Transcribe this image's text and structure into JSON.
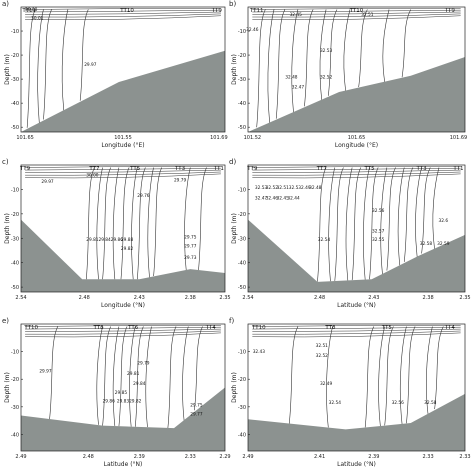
{
  "figure": {
    "caption": ""
  },
  "chart_data": [
    {
      "panel_label": "a)",
      "type": "contour",
      "xlabel": "Longitude (°E)",
      "ylabel": "Depth (m)",
      "xtick_labels": [
        "101.65",
        "101.55",
        "101.69"
      ],
      "yticks": [
        -10,
        -20,
        -30,
        -40,
        -50
      ],
      "ylim": [
        -52,
        0
      ],
      "stations": [
        "TT11",
        "TT10",
        "TT9"
      ],
      "contour_labels": [
        "30.00",
        "30.01",
        "29.97"
      ],
      "seabed": "sloping"
    },
    {
      "panel_label": "b)",
      "type": "contour",
      "xlabel": "Longitude (°E)",
      "ylabel": "Depth (m)",
      "xtick_labels": [
        "101.52",
        "101.65",
        "101.69"
      ],
      "yticks": [
        -10,
        -20,
        -30,
        -40,
        -50
      ],
      "ylim": [
        -52,
        0
      ],
      "stations": [
        "TT11",
        "TT10",
        "TT9"
      ],
      "contour_labels": [
        "32.45",
        "32.51",
        "32.46",
        "32.53",
        "32.48",
        "32.52",
        "32.47"
      ],
      "seabed": "sloping"
    },
    {
      "panel_label": "c)",
      "type": "contour",
      "xlabel": "Longitude (°N)",
      "ylabel": "Depth (m)",
      "xtick_labels": [
        "2.54",
        "2.48",
        "2.43",
        "2.38",
        "2.35"
      ],
      "yticks": [
        -10,
        -20,
        -30,
        -40,
        -50
      ],
      "ylim": [
        -52,
        0
      ],
      "stations": [
        "TT9",
        "TT7",
        "TT5",
        "TT3",
        "TT1"
      ],
      "contour_labels": [
        "29.97",
        "30.00",
        "29.76",
        "29.79",
        "29.81",
        "29.84",
        "29.86",
        "29.88",
        "29.82",
        "29.75",
        "29.77",
        "29.73"
      ],
      "seabed": "valley"
    },
    {
      "panel_label": "d)",
      "type": "contour",
      "xlabel": "Latitude (°N)",
      "ylabel": "Depth (m)",
      "xtick_labels": [
        "2.54",
        "2.48",
        "2.43",
        "2.38",
        "2.35"
      ],
      "yticks": [
        -10,
        -20,
        -30,
        -40,
        -50
      ],
      "ylim": [
        -52,
        0
      ],
      "stations": [
        "TT9",
        "TT7",
        "TT5",
        "TT3",
        "TT1"
      ],
      "contour_labels": [
        "32.53",
        "32.52",
        "32.51",
        "32.5",
        "32.49",
        "32.48",
        "32.47",
        "32.46",
        "32.45",
        "32.44",
        "32.56",
        "32.57",
        "32.55",
        "32.58",
        "32.6",
        "32.59",
        "32.54"
      ],
      "seabed": "valley"
    },
    {
      "panel_label": "e)",
      "type": "contour",
      "xlabel": "Latitude (°N)",
      "ylabel": "Depth (m)",
      "xtick_labels": [
        "2.49",
        "2.48",
        "2.39",
        "2.33",
        "2.29"
      ],
      "yticks": [
        -10,
        -20,
        -30,
        -40
      ],
      "ylim": [
        -46,
        0
      ],
      "stations": [
        "TT10",
        "TT8",
        "TT6",
        "TT4"
      ],
      "contour_labels": [
        "29.97",
        "29.79",
        "29.81",
        "29.84",
        "29.85",
        "29.86",
        "29.83",
        "29.82",
        "29.75",
        "29.77"
      ],
      "seabed": "sloping"
    },
    {
      "panel_label": "f)",
      "type": "contour",
      "xlabel": "Latitude (°N)",
      "ylabel": "Depth (m)",
      "xtick_labels": [
        "2.49",
        "2.41",
        "2.39",
        "2.33",
        "2.33"
      ],
      "yticks": [
        -10,
        -20,
        -30,
        -40
      ],
      "ylim": [
        -46,
        0
      ],
      "stations": [
        "TT10",
        "TT8",
        "TT5",
        "TT4"
      ],
      "contour_labels": [
        "32.43",
        "32.51",
        "32.52",
        "32.49",
        "32.54",
        "32.56",
        "32.58"
      ],
      "seabed": "sloping"
    }
  ]
}
